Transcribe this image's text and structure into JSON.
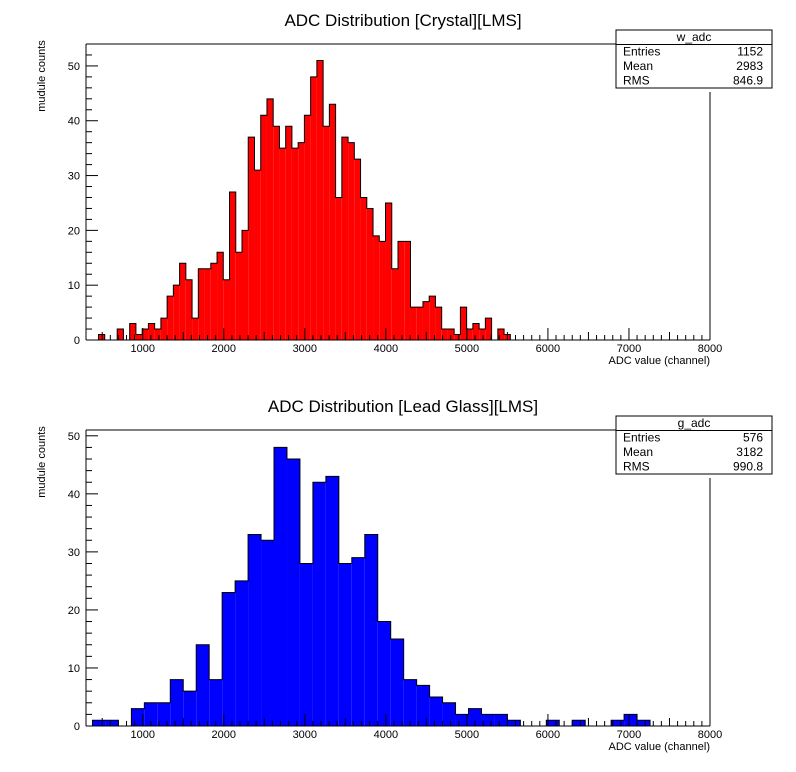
{
  "chart_data": [
    {
      "type": "bar",
      "title": "ADC Distribution [Crystal][LMS]",
      "xlabel": "ADC value (channel)",
      "ylabel": "mudule counts",
      "xlim": [
        300,
        8000
      ],
      "ylim": [
        0,
        54
      ],
      "x_ticks": [
        1000,
        2000,
        3000,
        4000,
        5000,
        6000,
        7000,
        8000
      ],
      "y_ticks": [
        0,
        10,
        20,
        30,
        40,
        50
      ],
      "bin_width": 77,
      "bin_low_edges": [
        300,
        377,
        454,
        531,
        608,
        685,
        762,
        839,
        916,
        993,
        1070,
        1147,
        1224,
        1301,
        1378,
        1455,
        1532,
        1609,
        1686,
        1763,
        1840,
        1917,
        1994,
        2071,
        2148,
        2225,
        2302,
        2379,
        2456,
        2533,
        2610,
        2687,
        2764,
        2841,
        2918,
        2995,
        3072,
        3149,
        3226,
        3303,
        3380,
        3457,
        3534,
        3611,
        3688,
        3765,
        3842,
        3919,
        3996,
        4073,
        4150,
        4227,
        4304,
        4381,
        4458,
        4535,
        4612,
        4689,
        4766,
        4843,
        4920,
        4997,
        5074,
        5151,
        5228,
        5305,
        5382,
        5459
      ],
      "values": [
        0,
        0,
        1,
        0,
        0,
        2,
        0,
        3,
        1,
        2,
        3,
        2,
        4,
        8,
        10,
        14,
        11,
        4,
        13,
        13,
        14,
        16,
        11,
        27,
        16,
        20,
        37,
        31,
        41,
        44,
        39,
        35,
        39,
        35,
        36,
        41,
        48,
        51,
        39,
        43,
        26,
        37,
        36,
        33,
        26,
        24,
        19,
        18,
        25,
        13,
        18,
        18,
        6,
        6,
        7,
        8,
        6,
        2,
        2,
        1,
        6,
        2,
        3,
        2,
        4,
        0,
        2,
        1
      ],
      "color": "#ff0000",
      "stats": {
        "name": "w_adc",
        "entries": "1152",
        "mean": "2983",
        "rms": "846.9"
      }
    },
    {
      "type": "bar",
      "title": "ADC Distribution [Lead Glass][LMS]",
      "xlabel": "ADC value (channel)",
      "ylabel": "mudule counts",
      "xlim": [
        300,
        8000
      ],
      "ylim": [
        0,
        51
      ],
      "x_ticks": [
        1000,
        2000,
        3000,
        4000,
        5000,
        6000,
        7000,
        8000
      ],
      "y_ticks": [
        0,
        10,
        20,
        30,
        40,
        50
      ],
      "bin_width": 160,
      "bin_low_edges": [
        380,
        540,
        700,
        860,
        1020,
        1180,
        1340,
        1500,
        1660,
        1820,
        1980,
        2140,
        2300,
        2460,
        2620,
        2780,
        2940,
        3100,
        3260,
        3420,
        3580,
        3740,
        3900,
        4060,
        4220,
        4380,
        4540,
        4700,
        4860,
        5020,
        5180,
        5340,
        5500,
        5660,
        5820,
        5980,
        6140,
        6300,
        6460,
        6620,
        6780,
        6940,
        7100
      ],
      "values": [
        1,
        1,
        0,
        3,
        4,
        4,
        8,
        6,
        14,
        8,
        23,
        25,
        33,
        32,
        48,
        46,
        28,
        42,
        43,
        28,
        29,
        33,
        18,
        15,
        8,
        7,
        5,
        4,
        2,
        3,
        2,
        2,
        1,
        0,
        0,
        1,
        0,
        1,
        0,
        0,
        1,
        2,
        1
      ],
      "color": "#0000ff",
      "stats": {
        "name": "g_adc",
        "entries": "576",
        "mean": "3182",
        "rms": "990.8"
      }
    }
  ],
  "stats_labels": {
    "entries": "Entries",
    "mean": "Mean",
    "rms": "RMS"
  }
}
